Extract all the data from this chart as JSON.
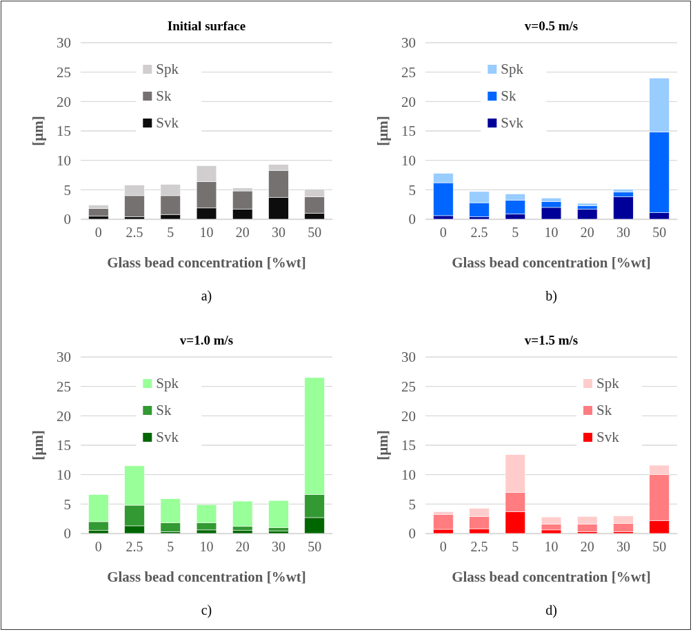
{
  "chart_data": [
    {
      "type": "bar",
      "stacked": true,
      "title": "Initial surface",
      "xlabel": "Glass bead concentration [%wt]",
      "ylabel": "[µm]",
      "annotations": [
        "a)"
      ],
      "categories": [
        "0",
        "2.5",
        "5",
        "10",
        "20",
        "30",
        "50"
      ],
      "ylim": [
        0,
        30
      ],
      "yticks": [
        0,
        5,
        10,
        15,
        20,
        25,
        30
      ],
      "grid": "y",
      "legend": "top left",
      "series": [
        {
          "name": "Svk",
          "color": "#0d0d0d",
          "values": [
            0.5,
            0.4,
            0.8,
            1.9,
            1.7,
            3.7,
            1.0
          ]
        },
        {
          "name": "Sk",
          "color": "#767171",
          "values": [
            1.3,
            3.6,
            3.2,
            4.5,
            3.1,
            4.6,
            2.8
          ]
        },
        {
          "name": "Spk",
          "color": "#d0cece",
          "values": [
            0.6,
            1.8,
            1.9,
            2.7,
            0.5,
            1.0,
            1.3
          ]
        }
      ]
    },
    {
      "type": "bar",
      "stacked": true,
      "title": "v=0.5 m/s",
      "xlabel": "Glass bead concentration [%wt]",
      "ylabel": "[µm]",
      "annotations": [
        "b)"
      ],
      "categories": [
        "0",
        "2.5",
        "5",
        "10",
        "20",
        "30",
        "50"
      ],
      "ylim": [
        0,
        30
      ],
      "yticks": [
        0,
        5,
        10,
        15,
        20,
        25,
        30
      ],
      "grid": "y",
      "legend": "top left",
      "series": [
        {
          "name": "Svk",
          "color": "#000099",
          "values": [
            0.6,
            0.4,
            0.9,
            2.0,
            1.7,
            3.8,
            1.1
          ]
        },
        {
          "name": "Sk",
          "color": "#0066ff",
          "values": [
            5.6,
            2.4,
            2.3,
            1.0,
            0.6,
            0.8,
            13.7
          ]
        },
        {
          "name": "Spk",
          "color": "#99ccff",
          "values": [
            1.6,
            1.9,
            1.1,
            0.6,
            0.4,
            0.5,
            9.2
          ]
        }
      ]
    },
    {
      "type": "bar",
      "stacked": true,
      "title": "v=1.0 m/s",
      "xlabel": "Glass bead concentration [%wt]",
      "ylabel": "[µm]",
      "annotations": [
        "c)"
      ],
      "categories": [
        "0",
        "2.5",
        "5",
        "10",
        "20",
        "30",
        "50"
      ],
      "ylim": [
        0,
        30
      ],
      "yticks": [
        0,
        5,
        10,
        15,
        20,
        25,
        30
      ],
      "grid": "y",
      "legend": "top left",
      "series": [
        {
          "name": "Svk",
          "color": "#006600",
          "values": [
            0.5,
            1.3,
            0.3,
            0.6,
            0.5,
            0.4,
            2.7
          ]
        },
        {
          "name": "Sk",
          "color": "#339933",
          "values": [
            1.5,
            3.5,
            1.5,
            1.2,
            0.7,
            0.6,
            3.9
          ]
        },
        {
          "name": "Spk",
          "color": "#99ff99",
          "values": [
            4.6,
            6.7,
            4.1,
            3.1,
            4.3,
            4.6,
            19.9
          ]
        }
      ]
    },
    {
      "type": "bar",
      "stacked": true,
      "title": "v=1.5 m/s",
      "xlabel": "Glass bead concentration [%wt]",
      "ylabel": "[µm]",
      "annotations": [
        "d)"
      ],
      "categories": [
        "0",
        "2.5",
        "5",
        "10",
        "20",
        "30",
        "50"
      ],
      "ylim": [
        0,
        30
      ],
      "yticks": [
        0,
        5,
        10,
        15,
        20,
        25,
        30
      ],
      "grid": "y",
      "legend": "top right",
      "series": [
        {
          "name": "Svk",
          "color": "#ff0000",
          "values": [
            0.7,
            0.8,
            3.7,
            0.6,
            0.3,
            0.3,
            2.2
          ]
        },
        {
          "name": "Sk",
          "color": "#ff7c80",
          "values": [
            2.5,
            2.1,
            3.3,
            1.0,
            1.3,
            1.4,
            7.8
          ]
        },
        {
          "name": "Spk",
          "color": "#ffcccc",
          "values": [
            0.5,
            1.4,
            6.4,
            1.2,
            1.3,
            1.3,
            1.6
          ]
        }
      ]
    }
  ]
}
